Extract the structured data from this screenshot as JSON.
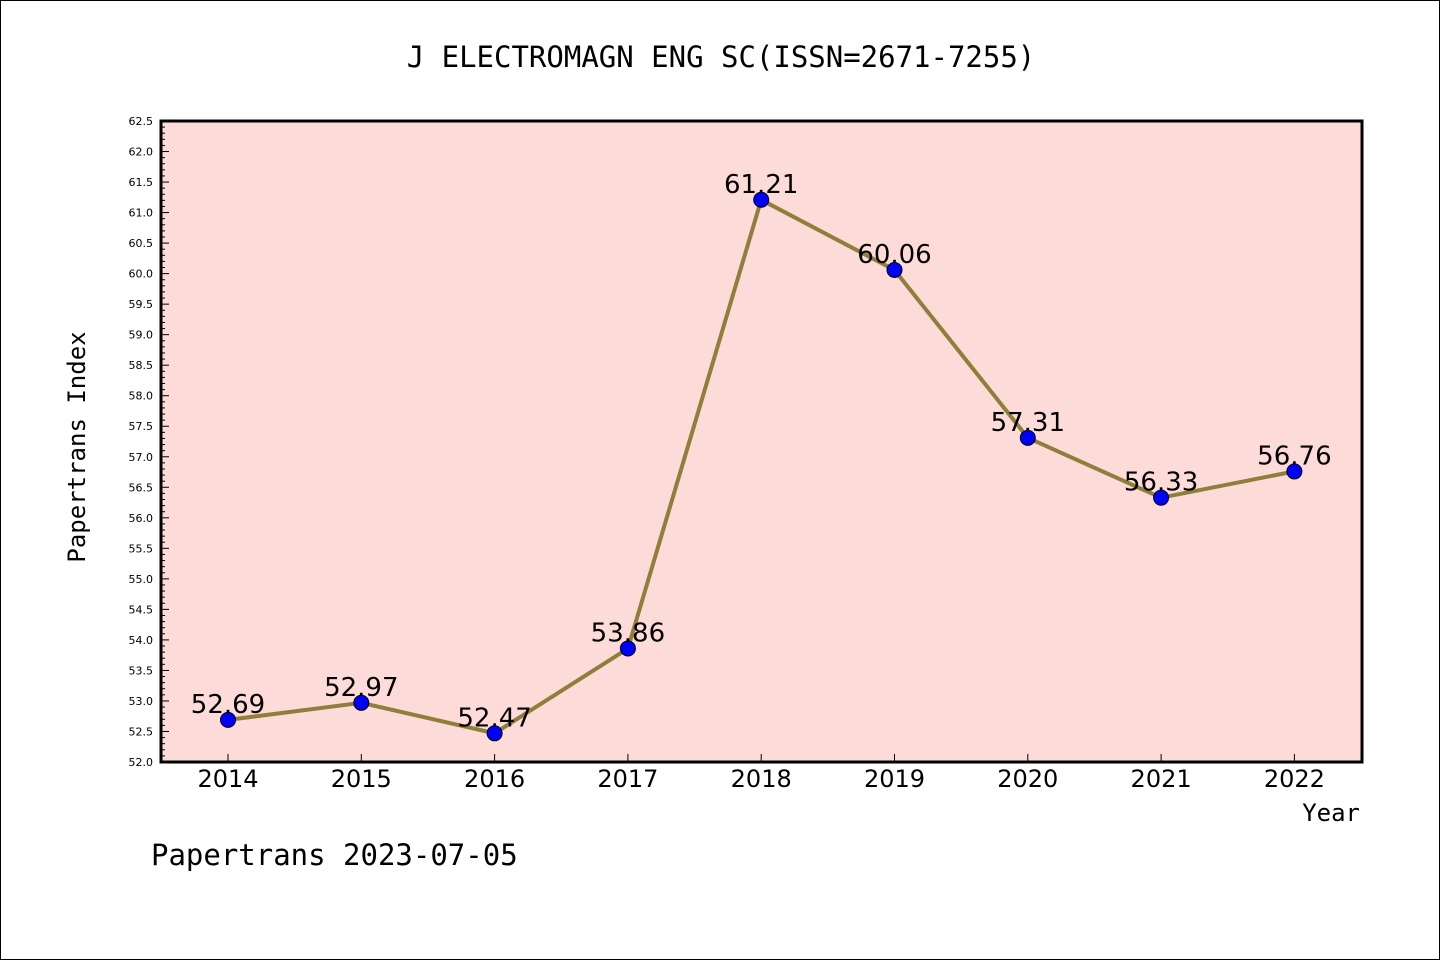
{
  "chart_data": {
    "type": "line",
    "title": "J ELECTROMAGN ENG SC(ISSN=2671-7255)",
    "xlabel": "Year",
    "ylabel": "Papertrans Index",
    "categories": [
      "2014",
      "2015",
      "2016",
      "2017",
      "2018",
      "2019",
      "2020",
      "2021",
      "2022"
    ],
    "series": [
      {
        "values": [
          52.69,
          52.97,
          52.47,
          53.86,
          61.21,
          60.06,
          57.31,
          56.33,
          56.76
        ]
      }
    ],
    "data_labels": [
      "52.69",
      "52.97",
      "52.47",
      "53.86",
      "61.21",
      "60.06",
      "57.31",
      "56.33",
      "56.76"
    ],
    "ylim": [
      52.0,
      62.5
    ],
    "y_ticks": [
      "52.0",
      "52.5",
      "53.0",
      "53.5",
      "54.0",
      "54.5",
      "55.0",
      "55.5",
      "56.0",
      "56.5",
      "57.0",
      "57.5",
      "58.0",
      "58.5",
      "59.0",
      "59.5",
      "60.0",
      "60.5",
      "61.0",
      "61.5",
      "62.0",
      "62.5"
    ],
    "grid": false,
    "legend": "none",
    "colors": {
      "plot_background": "#fddbd8",
      "line": "#8f7f3a",
      "marker": "#0000ff",
      "axes": "#000000"
    }
  },
  "footer": {
    "text": "Papertrans 2023-07-05"
  }
}
